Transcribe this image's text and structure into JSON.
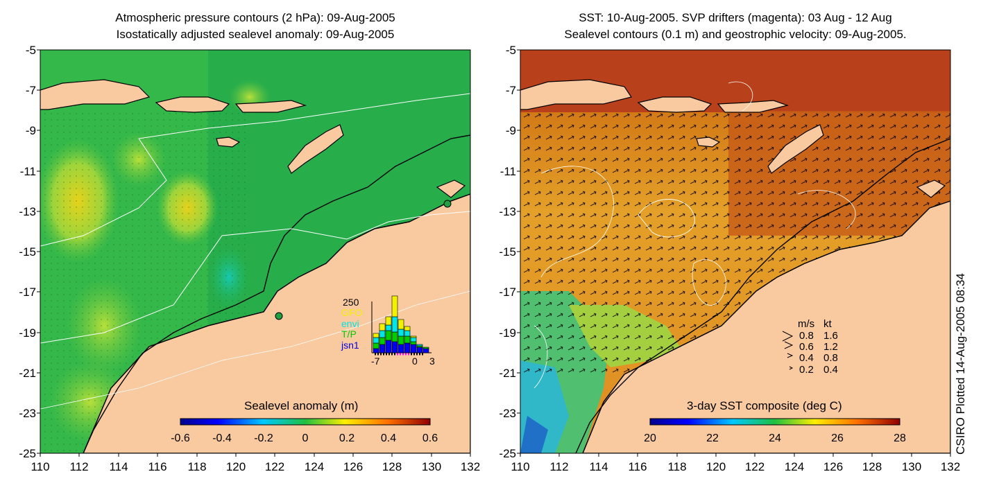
{
  "left_panel": {
    "title_line1": "Atmospheric pressure contours (2 hPa): 09-Aug-2005",
    "title_line2": "Isostatically adjusted sealevel anomaly: 09-Aug-2005",
    "colorbar_title": "Sealevel anomaly (m)",
    "colorbar_ticks": [
      "-0.6",
      "-0.4",
      "-0.2",
      "0",
      "0.2",
      "0.4",
      "0.6"
    ],
    "histogram": {
      "ymax_label": "250",
      "xtick_labels": [
        "-7",
        "0",
        "3"
      ],
      "legend": [
        {
          "label": "GFO",
          "color": "#f2f200"
        },
        {
          "label": "envi",
          "color": "#00e5e5"
        },
        {
          "label": "T/P",
          "color": "#00cc00"
        },
        {
          "label": "jsn1",
          "color": "#0000ee"
        }
      ]
    }
  },
  "right_panel": {
    "title_line1": "SST: 10-Aug-2005. SVP drifters (magenta): 03 Aug - 12 Aug",
    "title_line2": "Sealevel contours (0.1 m) and geostrophic velocity: 09-Aug-2005.",
    "colorbar_title": "3-day SST composite (deg C)",
    "colorbar_ticks": [
      "20",
      "22",
      "24",
      "26",
      "28"
    ],
    "velocity_key": {
      "header_ms": "m/s",
      "header_kt": "kt",
      "rows": [
        {
          "ms": "0.8",
          "kt": "1.6"
        },
        {
          "ms": "0.6",
          "kt": "1.2"
        },
        {
          "ms": "0.4",
          "kt": "0.8"
        },
        {
          "ms": "0.2",
          "kt": "0.4"
        }
      ]
    }
  },
  "axes": {
    "y_ticks": [
      "-5",
      "-7",
      "-9",
      "-11",
      "-13",
      "-15",
      "-17",
      "-19",
      "-21",
      "-23",
      "-25"
    ],
    "x_ticks": [
      "110",
      "112",
      "114",
      "116",
      "118",
      "120",
      "122",
      "124",
      "126",
      "128",
      "130",
      "132"
    ]
  },
  "credit": "CSIRO Plotted 14-Aug-2005 08:34",
  "colors": {
    "land": "#f9c9a0",
    "sla_ocean": "#2fb84a",
    "sst_ocean": "#e0902a",
    "sst_north": "#b83a10"
  }
}
